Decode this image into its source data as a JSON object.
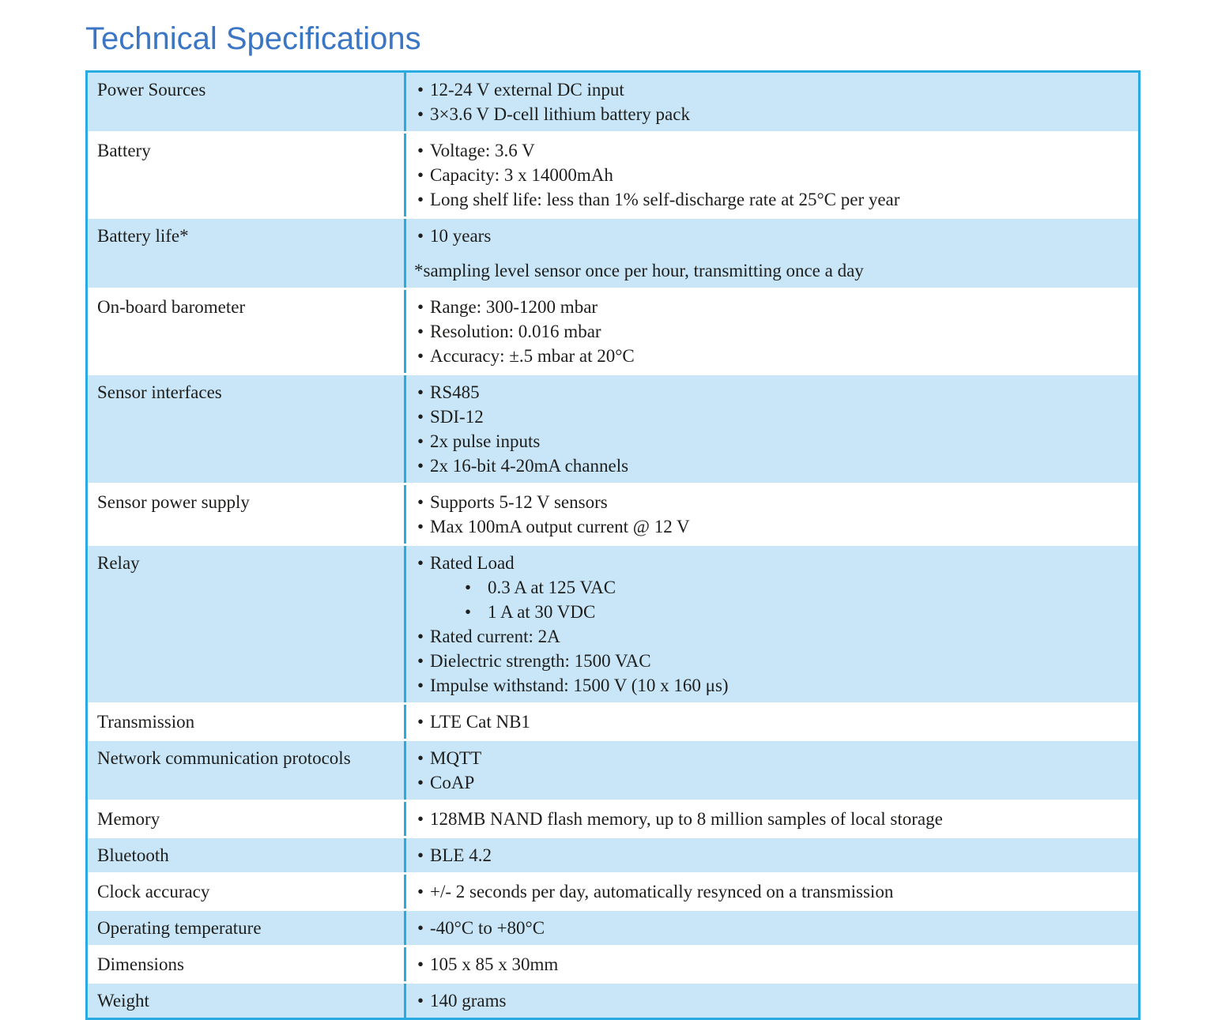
{
  "page": {
    "title": "Technical Specifications"
  },
  "colors": {
    "table_border": "#29abe2",
    "row_highlight": "#c8e6f8",
    "row_plain": "#ffffff",
    "title": "#3b76c4",
    "body_text": "#1e1e1c"
  },
  "icons": {
    "bullet": "•"
  },
  "table": {
    "rows": [
      {
        "label": "Power Sources",
        "items": [
          {
            "type": "bullet",
            "text": "12-24 V external DC input"
          },
          {
            "type": "bullet",
            "text": "3×3.6 V D-cell lithium battery pack"
          }
        ]
      },
      {
        "label": "Battery",
        "items": [
          {
            "type": "bullet",
            "text": "Voltage: 3.6 V"
          },
          {
            "type": "bullet",
            "text": "Capacity: 3 x 14000mAh"
          },
          {
            "type": "bullet",
            "text": "Long shelf life: less than 1% self-discharge rate at 25°C per year"
          }
        ]
      },
      {
        "label": "Battery life*",
        "items": [
          {
            "type": "bullet",
            "text": "10 years"
          },
          {
            "type": "note",
            "text": "*sampling level sensor once per hour, transmitting once a day"
          }
        ]
      },
      {
        "label": "On-board barometer",
        "items": [
          {
            "type": "bullet",
            "text": "Range: 300-1200 mbar"
          },
          {
            "type": "bullet",
            "text": "Resolution: 0.016 mbar"
          },
          {
            "type": "bullet",
            "text": "Accuracy: ±.5 mbar at 20°C"
          }
        ]
      },
      {
        "label": "Sensor interfaces",
        "items": [
          {
            "type": "bullet",
            "text": "RS485"
          },
          {
            "type": "bullet",
            "text": "SDI-12"
          },
          {
            "type": "bullet",
            "text": "2x pulse inputs"
          },
          {
            "type": "bullet",
            "text": "2x 16-bit 4-20mA channels"
          }
        ]
      },
      {
        "label": "Sensor power supply",
        "items": [
          {
            "type": "bullet",
            "text": "Supports 5-12 V sensors"
          },
          {
            "type": "bullet",
            "text": "Max 100mA output current @ 12 V"
          }
        ]
      },
      {
        "label": "Relay",
        "items": [
          {
            "type": "bullet",
            "text": "Rated Load"
          },
          {
            "type": "sub",
            "text": "0.3 A at 125 VAC"
          },
          {
            "type": "sub",
            "text": "1 A at 30 VDC"
          },
          {
            "type": "bullet",
            "text": "Rated current: 2A"
          },
          {
            "type": "bullet",
            "text": "Dielectric strength: 1500 VAC"
          },
          {
            "type": "bullet",
            "text": "Impulse withstand: 1500 V (10 x 160 μs)"
          }
        ]
      },
      {
        "label": "Transmission",
        "items": [
          {
            "type": "bullet",
            "text": "LTE Cat NB1"
          }
        ]
      },
      {
        "label": "Network communication protocols",
        "items": [
          {
            "type": "bullet",
            "text": "MQTT"
          },
          {
            "type": "bullet",
            "text": "CoAP"
          }
        ]
      },
      {
        "label": "Memory",
        "items": [
          {
            "type": "bullet",
            "text": "128MB NAND flash memory, up to 8 million samples of local storage"
          }
        ]
      },
      {
        "label": "Bluetooth",
        "items": [
          {
            "type": "bullet",
            "text": "BLE 4.2"
          }
        ]
      },
      {
        "label": "Clock accuracy",
        "items": [
          {
            "type": "bullet",
            "text": "+/- 2 seconds per day, automatically resynced on a transmission"
          }
        ]
      },
      {
        "label": "Operating temperature",
        "items": [
          {
            "type": "bullet",
            "text": "-40°C to +80°C"
          }
        ]
      },
      {
        "label": "Dimensions",
        "items": [
          {
            "type": "bullet",
            "text": "105 x 85 x 30mm"
          }
        ]
      },
      {
        "label": "Weight",
        "items": [
          {
            "type": "bullet",
            "text": "140 grams"
          }
        ]
      }
    ]
  }
}
